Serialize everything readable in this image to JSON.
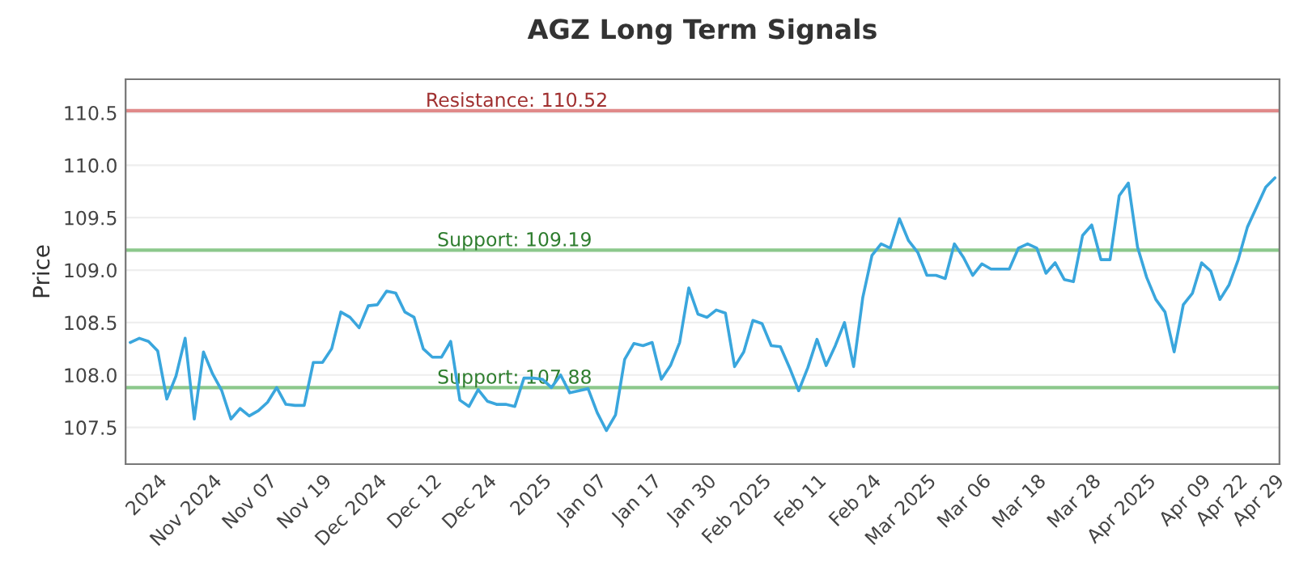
{
  "chart_data": {
    "type": "line",
    "title": "AGZ Long Term Signals",
    "ylabel": "Price",
    "categories": [
      null,
      null,
      null,
      "2024",
      null,
      null,
      null,
      null,
      null,
      "Nov 2024",
      null,
      null,
      null,
      null,
      null,
      "Nov 07",
      null,
      null,
      null,
      null,
      null,
      "Nov 19",
      null,
      null,
      null,
      null,
      null,
      "Dec 2024",
      null,
      null,
      null,
      null,
      null,
      "Dec 12",
      null,
      null,
      null,
      null,
      null,
      "Dec 24",
      null,
      null,
      null,
      null,
      null,
      "2025",
      null,
      null,
      null,
      null,
      null,
      "Jan 07",
      null,
      null,
      null,
      null,
      null,
      "Jan 17",
      null,
      null,
      null,
      null,
      null,
      "Jan 30",
      null,
      null,
      null,
      null,
      null,
      "Feb 2025",
      null,
      null,
      null,
      null,
      null,
      "Feb 11",
      null,
      null,
      null,
      null,
      null,
      "Feb 24",
      null,
      null,
      null,
      null,
      null,
      "Mar 2025",
      null,
      null,
      null,
      null,
      null,
      "Mar 06",
      null,
      null,
      null,
      null,
      null,
      "Mar 18",
      null,
      null,
      null,
      null,
      null,
      "Mar 28",
      null,
      null,
      null,
      null,
      null,
      "Apr 2025",
      null,
      null,
      null,
      null,
      null,
      "Apr 09",
      null,
      null,
      null,
      "Apr 22",
      null,
      null,
      null,
      "Apr 29"
    ],
    "series": [
      {
        "color": "#3aa6dd",
        "values": [
          108.31,
          108.35,
          108.32,
          108.23,
          107.77,
          107.99,
          108.35,
          107.58,
          108.22,
          108.01,
          107.85,
          107.58,
          107.68,
          107.61,
          107.66,
          107.74,
          107.88,
          107.72,
          107.71,
          107.71,
          108.12,
          108.12,
          108.25,
          108.6,
          108.55,
          108.45,
          108.66,
          108.67,
          108.8,
          108.78,
          108.6,
          108.55,
          108.25,
          108.17,
          108.17,
          108.32,
          107.76,
          107.7,
          107.86,
          107.75,
          107.72,
          107.72,
          107.7,
          107.97,
          107.97,
          107.96,
          107.88,
          108.0,
          107.83,
          107.85,
          107.87,
          107.64,
          107.47,
          107.62,
          108.15,
          108.3,
          108.28,
          108.31,
          107.96,
          108.09,
          108.31,
          108.83,
          108.58,
          108.55,
          108.62,
          108.59,
          108.08,
          108.22,
          108.52,
          108.49,
          108.28,
          108.27,
          108.07,
          107.85,
          108.07,
          108.34,
          108.09,
          108.28,
          108.5,
          108.08,
          108.74,
          109.14,
          109.25,
          109.21,
          109.49,
          109.28,
          109.17,
          108.95,
          108.95,
          108.92,
          109.25,
          109.12,
          108.95,
          109.06,
          109.01,
          109.01,
          109.01,
          109.21,
          109.25,
          109.21,
          108.97,
          109.07,
          108.91,
          108.89,
          109.33,
          109.43,
          109.1,
          109.1,
          109.71,
          109.83,
          109.22,
          108.93,
          108.72,
          108.6,
          108.22,
          108.67,
          108.78,
          109.07,
          108.99,
          108.72,
          108.86,
          109.1,
          109.41,
          109.6,
          109.79,
          109.88
        ]
      }
    ],
    "ylim": [
      107.15,
      110.82
    ],
    "yticks": [
      107.5,
      {
        "value": 108,
        "label": "108.0"
      },
      108.5,
      {
        "value": 109,
        "label": "109.0"
      },
      109.5,
      {
        "value": 110,
        "label": "110.0"
      },
      110.5
    ],
    "ref_lines": [
      {
        "axis": "y",
        "value": 110.52,
        "label": "Resistance: 110.52",
        "color": "#e08a8a"
      },
      {
        "axis": "y",
        "value": 109.19,
        "label": "Support: 109.19",
        "color": "#8cc88c"
      },
      {
        "axis": "y",
        "value": 107.88,
        "label": "Support: 107.88",
        "color": "#8cc88c"
      }
    ],
    "grid": "y",
    "legend": false,
    "marker": "none",
    "line_style": "solid"
  }
}
